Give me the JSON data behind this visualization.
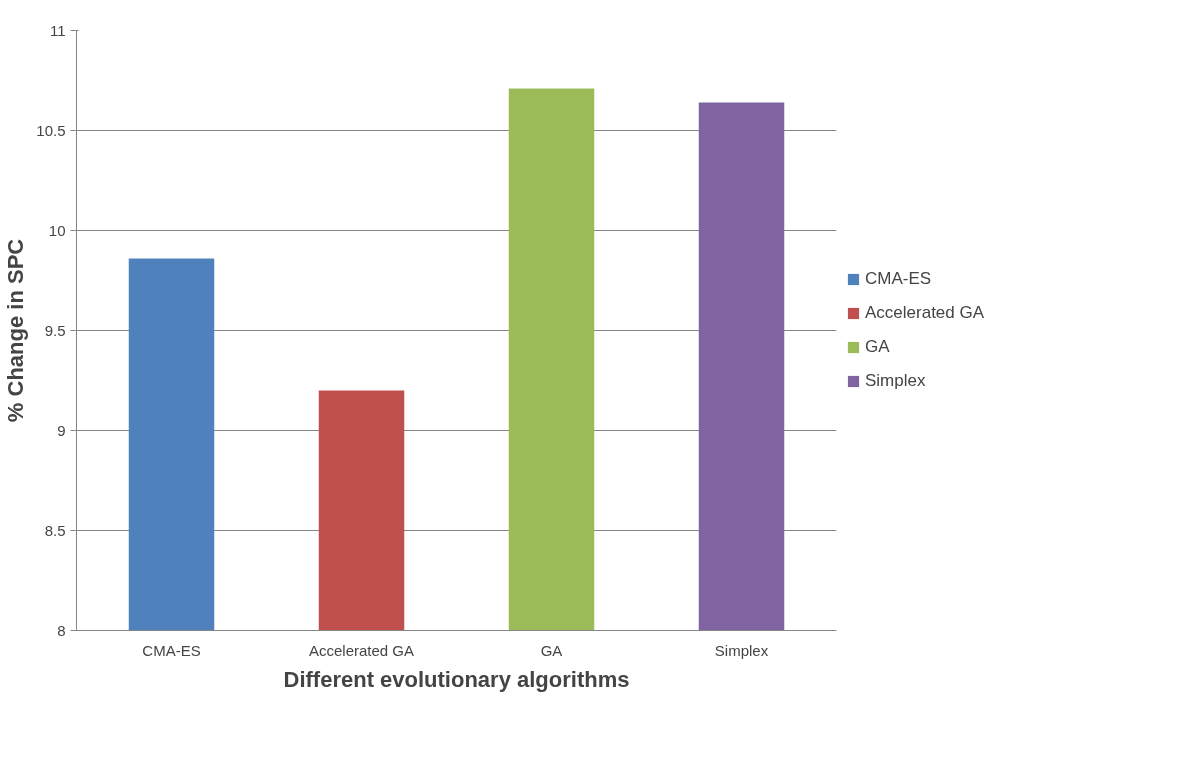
{
  "chart_data": {
    "type": "bar",
    "xlabel": "Different evolutionary algorithms",
    "ylabel": "% Change in SPC",
    "categories": [
      "CMA-ES",
      "Accelerated GA",
      "GA",
      "Simplex"
    ],
    "series": [
      {
        "name": "CMA-ES",
        "color": "#4f81bd",
        "values": [
          9.86,
          null,
          null,
          null
        ]
      },
      {
        "name": "Accelerated GA",
        "color": "#c0504d",
        "values": [
          null,
          9.2,
          null,
          null
        ]
      },
      {
        "name": "GA",
        "color": "#9bbb59",
        "values": [
          null,
          null,
          10.71,
          null
        ]
      },
      {
        "name": "Simplex",
        "color": "#8064a2",
        "values": [
          null,
          null,
          null,
          10.64
        ]
      }
    ],
    "ylim": [
      8,
      11
    ],
    "yticks": [
      8,
      8.5,
      9,
      9.5,
      10,
      10.5,
      11
    ],
    "grid": "y",
    "legend": "right"
  }
}
